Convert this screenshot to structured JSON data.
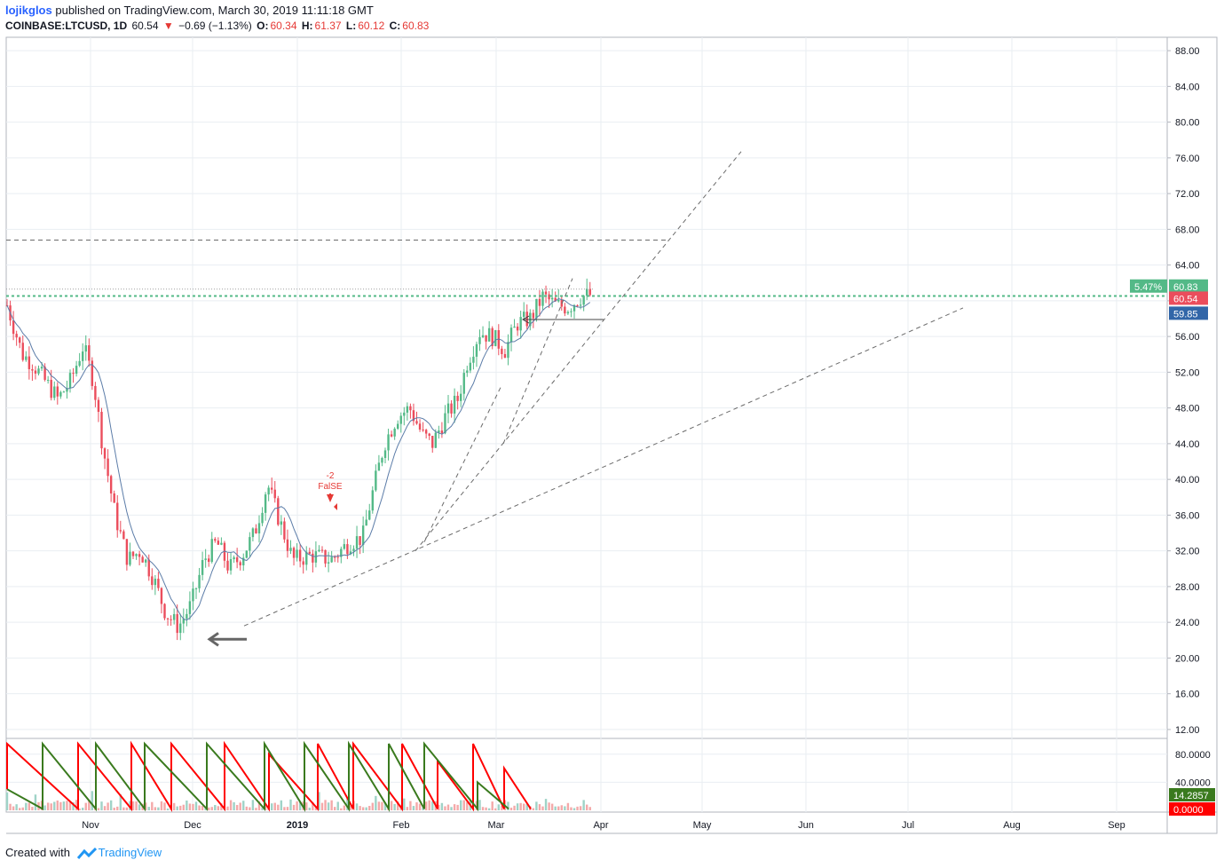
{
  "header": {
    "author": "lojikglos",
    "published": "published on TradingView.com, March 30, 2019 11:11:18 GMT",
    "symbol": "COINBASE:LTCUSD, 1D",
    "last": "60.54",
    "change": "−0.69 (−1.13%)",
    "o_label": "O:",
    "o_value": "60.34",
    "h_label": "H:",
    "h_value": "61.37",
    "l_label": "L:",
    "l_value": "60.12",
    "c_label": "C:",
    "c_value": "60.83"
  },
  "footer": {
    "created": "Created with",
    "brand": "TradingView"
  },
  "colors": {
    "up": "#53b987",
    "down": "#eb4d5c",
    "grid": "#e9eef2",
    "trend": "#6b6b6b",
    "ma": "#5b7ca8",
    "osc_green": "#3a7a1e",
    "osc_red": "#ff0000"
  },
  "chart_data": {
    "type": "candlestick",
    "x_ticks": [
      "Nov",
      "Dec",
      "2019",
      "Feb",
      "Mar",
      "Apr",
      "May",
      "Jun",
      "Jul",
      "Aug",
      "Sep"
    ],
    "y_ticks": [
      "88.00",
      "84.00",
      "80.00",
      "76.00",
      "72.00",
      "68.00",
      "64.00",
      "60.00",
      "56.00",
      "52.00",
      "48.00",
      "44.00",
      "40.00",
      "36.00",
      "32.00",
      "28.00",
      "24.00",
      "20.00",
      "16.00",
      "12.00"
    ],
    "ylim": [
      11,
      89.5
    ],
    "price_labels": {
      "pct": "5.47%",
      "close": "60.83",
      "last": "60.54",
      "ma": "59.85"
    },
    "annotation": {
      "number": "-2",
      "text": "FalSE"
    },
    "oscillator": {
      "y_ticks": [
        "80.0000",
        "40.0000"
      ],
      "ylim": [
        0,
        100
      ],
      "value_green": "14.2857",
      "value_red": "0.0000"
    },
    "candles_ohlc_sample": [
      [
        59.0,
        59.8,
        58.2,
        59.3
      ],
      [
        59.3,
        60.2,
        58.5,
        59.8
      ],
      [
        59.8,
        60.0,
        57.5,
        58.2
      ],
      [
        58.2,
        58.6,
        53.0,
        54.0
      ],
      [
        54.0,
        55.0,
        51.0,
        53.5
      ],
      [
        53.5,
        54.0,
        52.5,
        53.0
      ],
      [
        53.0,
        53.8,
        52.0,
        53.2
      ],
      [
        53.2,
        53.6,
        52.4,
        52.8
      ],
      [
        52.8,
        53.5,
        52.0,
        52.5
      ],
      [
        52.5,
        53.0,
        51.8,
        52.0
      ],
      [
        52.0,
        52.5,
        47.5,
        49.0
      ],
      [
        49.0,
        51.0,
        48.0,
        50.5
      ],
      [
        50.5,
        52.0,
        50.0,
        51.5
      ],
      [
        51.5,
        56.5,
        51.0,
        55.5
      ],
      [
        55.5,
        56.5,
        53.5,
        54.0
      ],
      [
        54.0,
        54.5,
        51.0,
        52.0
      ],
      [
        52.0,
        52.5,
        46.0,
        47.0
      ],
      [
        47.0,
        47.5,
        40.0,
        42.0
      ],
      [
        42.0,
        43.0,
        37.0,
        38.5
      ],
      [
        38.5,
        40.0,
        33.0,
        34.5
      ],
      [
        34.5,
        35.0,
        27.0,
        30.0
      ],
      [
        30.0,
        33.5,
        29.0,
        33.0
      ],
      [
        33.0,
        35.5,
        32.0,
        33.5
      ],
      [
        33.5,
        34.0,
        29.0,
        30.0
      ],
      [
        30.0,
        30.5,
        25.0,
        26.5
      ],
      [
        26.5,
        27.0,
        22.5,
        23.5
      ],
      [
        23.5,
        24.5,
        22.5,
        23.2
      ],
      [
        23.2,
        27.0,
        23.0,
        26.5
      ],
      [
        26.5,
        31.0,
        26.0,
        30.0
      ],
      [
        30.0,
        37.0,
        29.5,
        33.0
      ],
      [
        33.0,
        34.0,
        29.5,
        31.5
      ],
      [
        31.5,
        32.5,
        30.0,
        31.0
      ],
      [
        31.0,
        33.5,
        30.5,
        33.0
      ],
      [
        33.0,
        38.0,
        32.5,
        37.5
      ],
      [
        37.5,
        41.0,
        36.5,
        39.5
      ],
      [
        39.5,
        40.0,
        35.0,
        36.0
      ],
      [
        36.0,
        36.5,
        31.0,
        32.0
      ],
      [
        32.0,
        32.5,
        29.5,
        31.0
      ],
      [
        31.0,
        32.0,
        30.0,
        30.8
      ],
      [
        30.8,
        33.0,
        30.5,
        32.5
      ],
      [
        32.5,
        33.0,
        30.0,
        31.0
      ],
      [
        31.0,
        32.0,
        30.0,
        31.5
      ],
      [
        31.5,
        33.0,
        31.0,
        32.8
      ],
      [
        32.8,
        34.0,
        32.0,
        33.0
      ],
      [
        33.0,
        41.0,
        32.5,
        40.0
      ],
      [
        40.0,
        47.0,
        38.0,
        45.0
      ],
      [
        45.0,
        46.5,
        41.0,
        42.5
      ],
      [
        42.5,
        47.5,
        42.0,
        47.0
      ],
      [
        47.0,
        52.5,
        46.0,
        51.0
      ],
      [
        51.0,
        51.5,
        44.0,
        45.5
      ],
      [
        45.5,
        46.0,
        42.0,
        44.0
      ],
      [
        44.0,
        48.0,
        43.5,
        47.5
      ],
      [
        47.5,
        50.0,
        46.5,
        48.5
      ],
      [
        48.5,
        55.0,
        48.0,
        54.5
      ],
      [
        54.5,
        58.5,
        53.5,
        57.5
      ],
      [
        57.5,
        58.0,
        54.0,
        55.0
      ],
      [
        55.0,
        56.0,
        53.0,
        55.5
      ],
      [
        55.5,
        59.5,
        55.0,
        58.5
      ],
      [
        58.5,
        62.5,
        58.0,
        61.0
      ],
      [
        61.0,
        62.0,
        58.5,
        59.0
      ],
      [
        59.0,
        60.5,
        57.5,
        60.0
      ],
      [
        60.0,
        61.5,
        59.0,
        60.5
      ],
      [
        60.5,
        61.8,
        59.5,
        60.2
      ],
      [
        60.3,
        61.4,
        60.1,
        60.8
      ]
    ]
  }
}
